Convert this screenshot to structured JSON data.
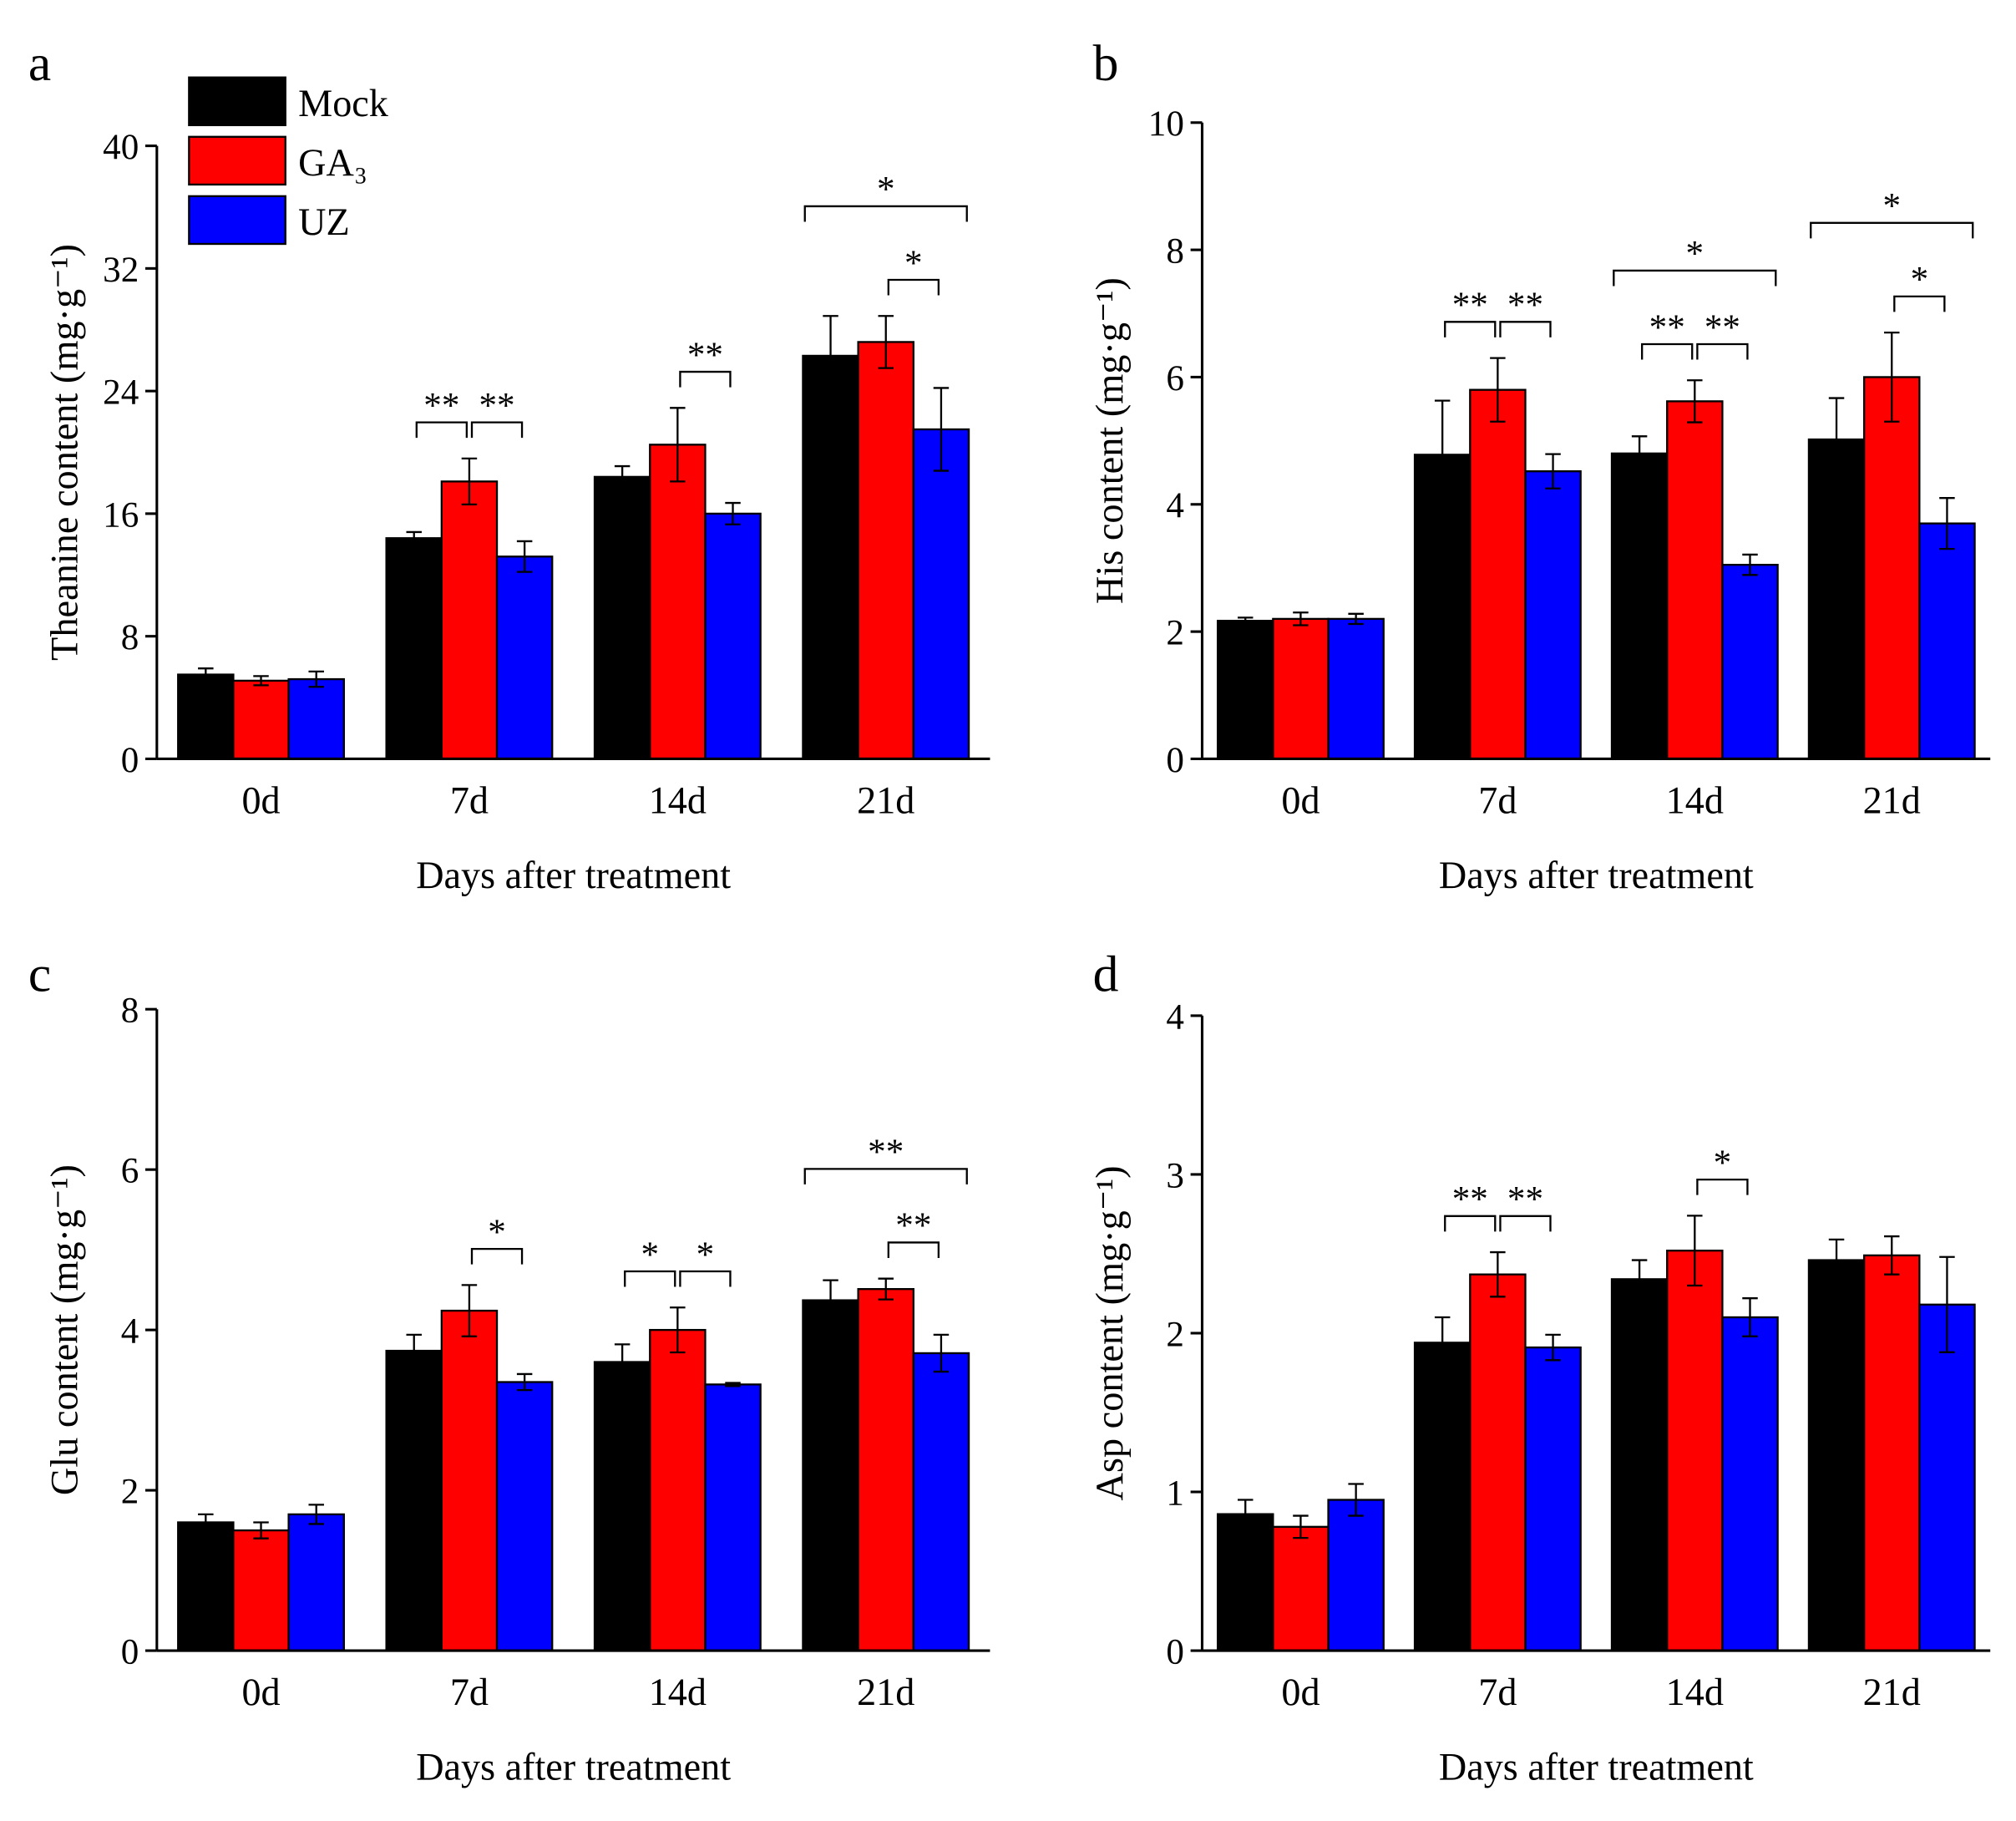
{
  "chart_data": [
    {
      "type": "bar",
      "panel": "a",
      "ylabel": "Theanine content (mg·g⁻¹)",
      "xlabel": "Days after treatment",
      "categories": [
        "0d",
        "7d",
        "14d",
        "21d"
      ],
      "ylim": [
        0,
        40
      ],
      "yticks": [
        0,
        8,
        16,
        24,
        32,
        40
      ],
      "legend": "upper left",
      "series": [
        {
          "name": "Mock",
          "color": "#000000",
          "values": [
            5.5,
            14.4,
            18.4,
            26.3
          ],
          "errors": [
            0.4,
            0.4,
            0.7,
            2.6
          ]
        },
        {
          "name": "GA₃",
          "color": "#ff0000",
          "values": [
            5.1,
            18.1,
            20.5,
            27.2
          ],
          "errors": [
            0.3,
            1.5,
            2.4,
            1.7
          ]
        },
        {
          "name": "UZ",
          "color": "#0000ff",
          "values": [
            5.2,
            13.2,
            16.0,
            21.5
          ],
          "errors": [
            0.5,
            1.0,
            0.7,
            2.7
          ]
        }
      ],
      "annotations": [
        {
          "text": "**",
          "category": 1,
          "series": [
            0,
            1
          ]
        },
        {
          "text": "**",
          "category": 1,
          "series": [
            1,
            2
          ]
        },
        {
          "text": "**",
          "category": 2,
          "series": [
            1,
            2
          ]
        },
        {
          "text": "*",
          "category": 3,
          "series": [
            0,
            2
          ]
        },
        {
          "text": "*",
          "category": 3,
          "series": [
            1,
            2
          ]
        }
      ]
    },
    {
      "type": "bar",
      "panel": "b",
      "ylabel": "His content (mg·g⁻¹)",
      "xlabel": "Days after treatment",
      "categories": [
        "0d",
        "7d",
        "14d",
        "21d"
      ],
      "ylim": [
        0,
        10
      ],
      "yticks": [
        0,
        2,
        4,
        6,
        8,
        10
      ],
      "series": [
        {
          "color": "#000000",
          "values": [
            2.17,
            4.78,
            4.8,
            5.02
          ],
          "errors": [
            0.05,
            0.85,
            0.27,
            0.65
          ]
        },
        {
          "color": "#ff0000",
          "values": [
            2.2,
            5.8,
            5.62,
            6.0
          ],
          "errors": [
            0.1,
            0.5,
            0.33,
            0.7
          ]
        },
        {
          "color": "#0000ff",
          "values": [
            2.2,
            4.52,
            3.05,
            3.7
          ],
          "errors": [
            0.08,
            0.27,
            0.16,
            0.4
          ]
        }
      ],
      "annotations": [
        {
          "text": "**",
          "category": 1,
          "series": [
            0,
            1
          ]
        },
        {
          "text": "**",
          "category": 1,
          "series": [
            1,
            2
          ]
        },
        {
          "text": "**",
          "category": 2,
          "series": [
            0,
            1
          ]
        },
        {
          "text": "**",
          "category": 2,
          "series": [
            1,
            2
          ]
        },
        {
          "text": "*",
          "category": 2,
          "series": [
            0,
            2
          ]
        },
        {
          "text": "*",
          "category": 3,
          "series": [
            0,
            2
          ]
        },
        {
          "text": "*",
          "category": 3,
          "series": [
            1,
            2
          ]
        }
      ]
    },
    {
      "type": "bar",
      "panel": "c",
      "ylabel": "Glu content (mg·g⁻¹)",
      "xlabel": "Days after treatment",
      "categories": [
        "0d",
        "7d",
        "14d",
        "21d"
      ],
      "ylim": [
        0,
        8
      ],
      "yticks": [
        0,
        2,
        4,
        6,
        8
      ],
      "series": [
        {
          "color": "#000000",
          "values": [
            1.6,
            3.74,
            3.6,
            4.37
          ],
          "errors": [
            0.1,
            0.2,
            0.22,
            0.25
          ]
        },
        {
          "color": "#ff0000",
          "values": [
            1.5,
            4.24,
            4.0,
            4.51
          ],
          "errors": [
            0.1,
            0.32,
            0.28,
            0.13
          ]
        },
        {
          "color": "#0000ff",
          "values": [
            1.7,
            3.35,
            3.32,
            3.71
          ],
          "errors": [
            0.12,
            0.1,
            0.02,
            0.23
          ]
        }
      ],
      "annotations": [
        {
          "text": "*",
          "category": 1,
          "series": [
            1,
            2
          ]
        },
        {
          "text": "*",
          "category": 2,
          "series": [
            0,
            1
          ]
        },
        {
          "text": "*",
          "category": 2,
          "series": [
            1,
            2
          ]
        },
        {
          "text": "**",
          "category": 3,
          "series": [
            0,
            2
          ]
        },
        {
          "text": "**",
          "category": 3,
          "series": [
            1,
            2
          ]
        }
      ]
    },
    {
      "type": "bar",
      "panel": "d",
      "ylabel": "Asp content (mg·g⁻¹)",
      "xlabel": "Days after treatment",
      "categories": [
        "0d",
        "7d",
        "14d",
        "21d"
      ],
      "ylim": [
        0,
        4
      ],
      "yticks": [
        0,
        1,
        2,
        3,
        4
      ],
      "series": [
        {
          "color": "#000000",
          "values": [
            0.86,
            1.94,
            2.34,
            2.46
          ],
          "errors": [
            0.09,
            0.16,
            0.12,
            0.13
          ]
        },
        {
          "color": "#ff0000",
          "values": [
            0.78,
            2.37,
            2.52,
            2.49
          ],
          "errors": [
            0.07,
            0.14,
            0.22,
            0.12
          ]
        },
        {
          "color": "#0000ff",
          "values": [
            0.95,
            1.91,
            2.1,
            2.18
          ],
          "errors": [
            0.1,
            0.08,
            0.12,
            0.3
          ]
        }
      ],
      "annotations": [
        {
          "text": "**",
          "category": 1,
          "series": [
            0,
            1
          ]
        },
        {
          "text": "**",
          "category": 1,
          "series": [
            1,
            2
          ]
        },
        {
          "text": "*",
          "category": 2,
          "series": [
            1,
            2
          ]
        }
      ]
    }
  ]
}
